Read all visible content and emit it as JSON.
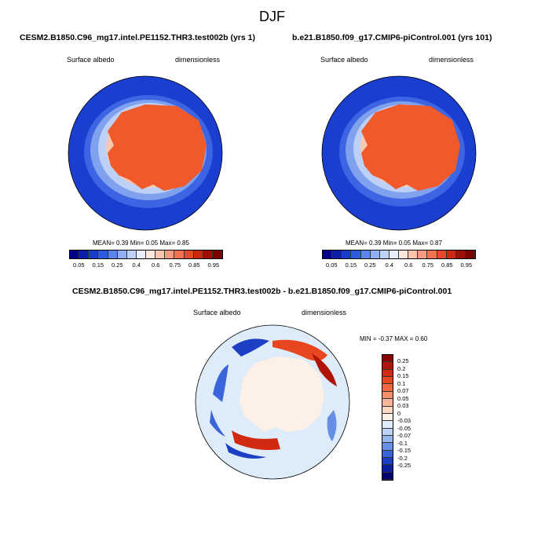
{
  "season": "DJF",
  "panels": [
    {
      "title": "CESM2.B1850.C96_mg17.intel.PE1152.THR3.test002b (yrs 1)",
      "left_label": "Surface albedo",
      "right_label": "dimensionless",
      "stats": "MEAN=  0.39  Min=  0.05  Max=  0.85"
    },
    {
      "title": "b.e21.B1850.f09_g17.CMIP6-piControl.001 (yrs 101)",
      "left_label": "Surface albedo",
      "right_label": "dimensionless",
      "stats": "MEAN=  0.39  Min=  0.05  Max=  0.87"
    }
  ],
  "abs_colorbar": {
    "colors": [
      "#00008b",
      "#0b1fa8",
      "#1740c8",
      "#2e5ce0",
      "#5a85ec",
      "#8fb0f4",
      "#bcd0f8",
      "#e6eefc",
      "#fde6dc",
      "#fbc3ac",
      "#f79c7e",
      "#f0724f",
      "#e54a28",
      "#cc2a10",
      "#a30e04",
      "#7d0000"
    ],
    "tick_labels": [
      "0.05",
      "0.15",
      "0.25",
      "0.4",
      "0.6",
      "0.75",
      "0.85",
      "0.95"
    ]
  },
  "diff_panel": {
    "title": "CESM2.B1850.C96_mg17.intel.PE1152.THR3.test002b - b.e21.B1850.f09_g17.CMIP6-piControl.001",
    "left_label": "Surface albedo",
    "right_label": "dimensionless",
    "stats": "MIN =  -0.37  MAX =   0.60"
  },
  "diff_colorbar": {
    "colors": [
      "#8b0000",
      "#b01408",
      "#d22a10",
      "#e8461e",
      "#f2693f",
      "#f78f68",
      "#fab59a",
      "#fcd6c4",
      "#fdf0e6",
      "#deebf9",
      "#bcd3f5",
      "#94b4ee",
      "#6690e6",
      "#3a64da",
      "#1d3fc4",
      "#08209e",
      "#000070"
    ],
    "tick_labels": [
      "0.25",
      "0.2",
      "0.15",
      "0.1",
      "0.07",
      "0.05",
      "0.03",
      "0",
      "-0.03",
      "-0.05",
      "-0.07",
      "-0.1",
      "-0.15",
      "-0.2",
      "-0.25"
    ]
  }
}
